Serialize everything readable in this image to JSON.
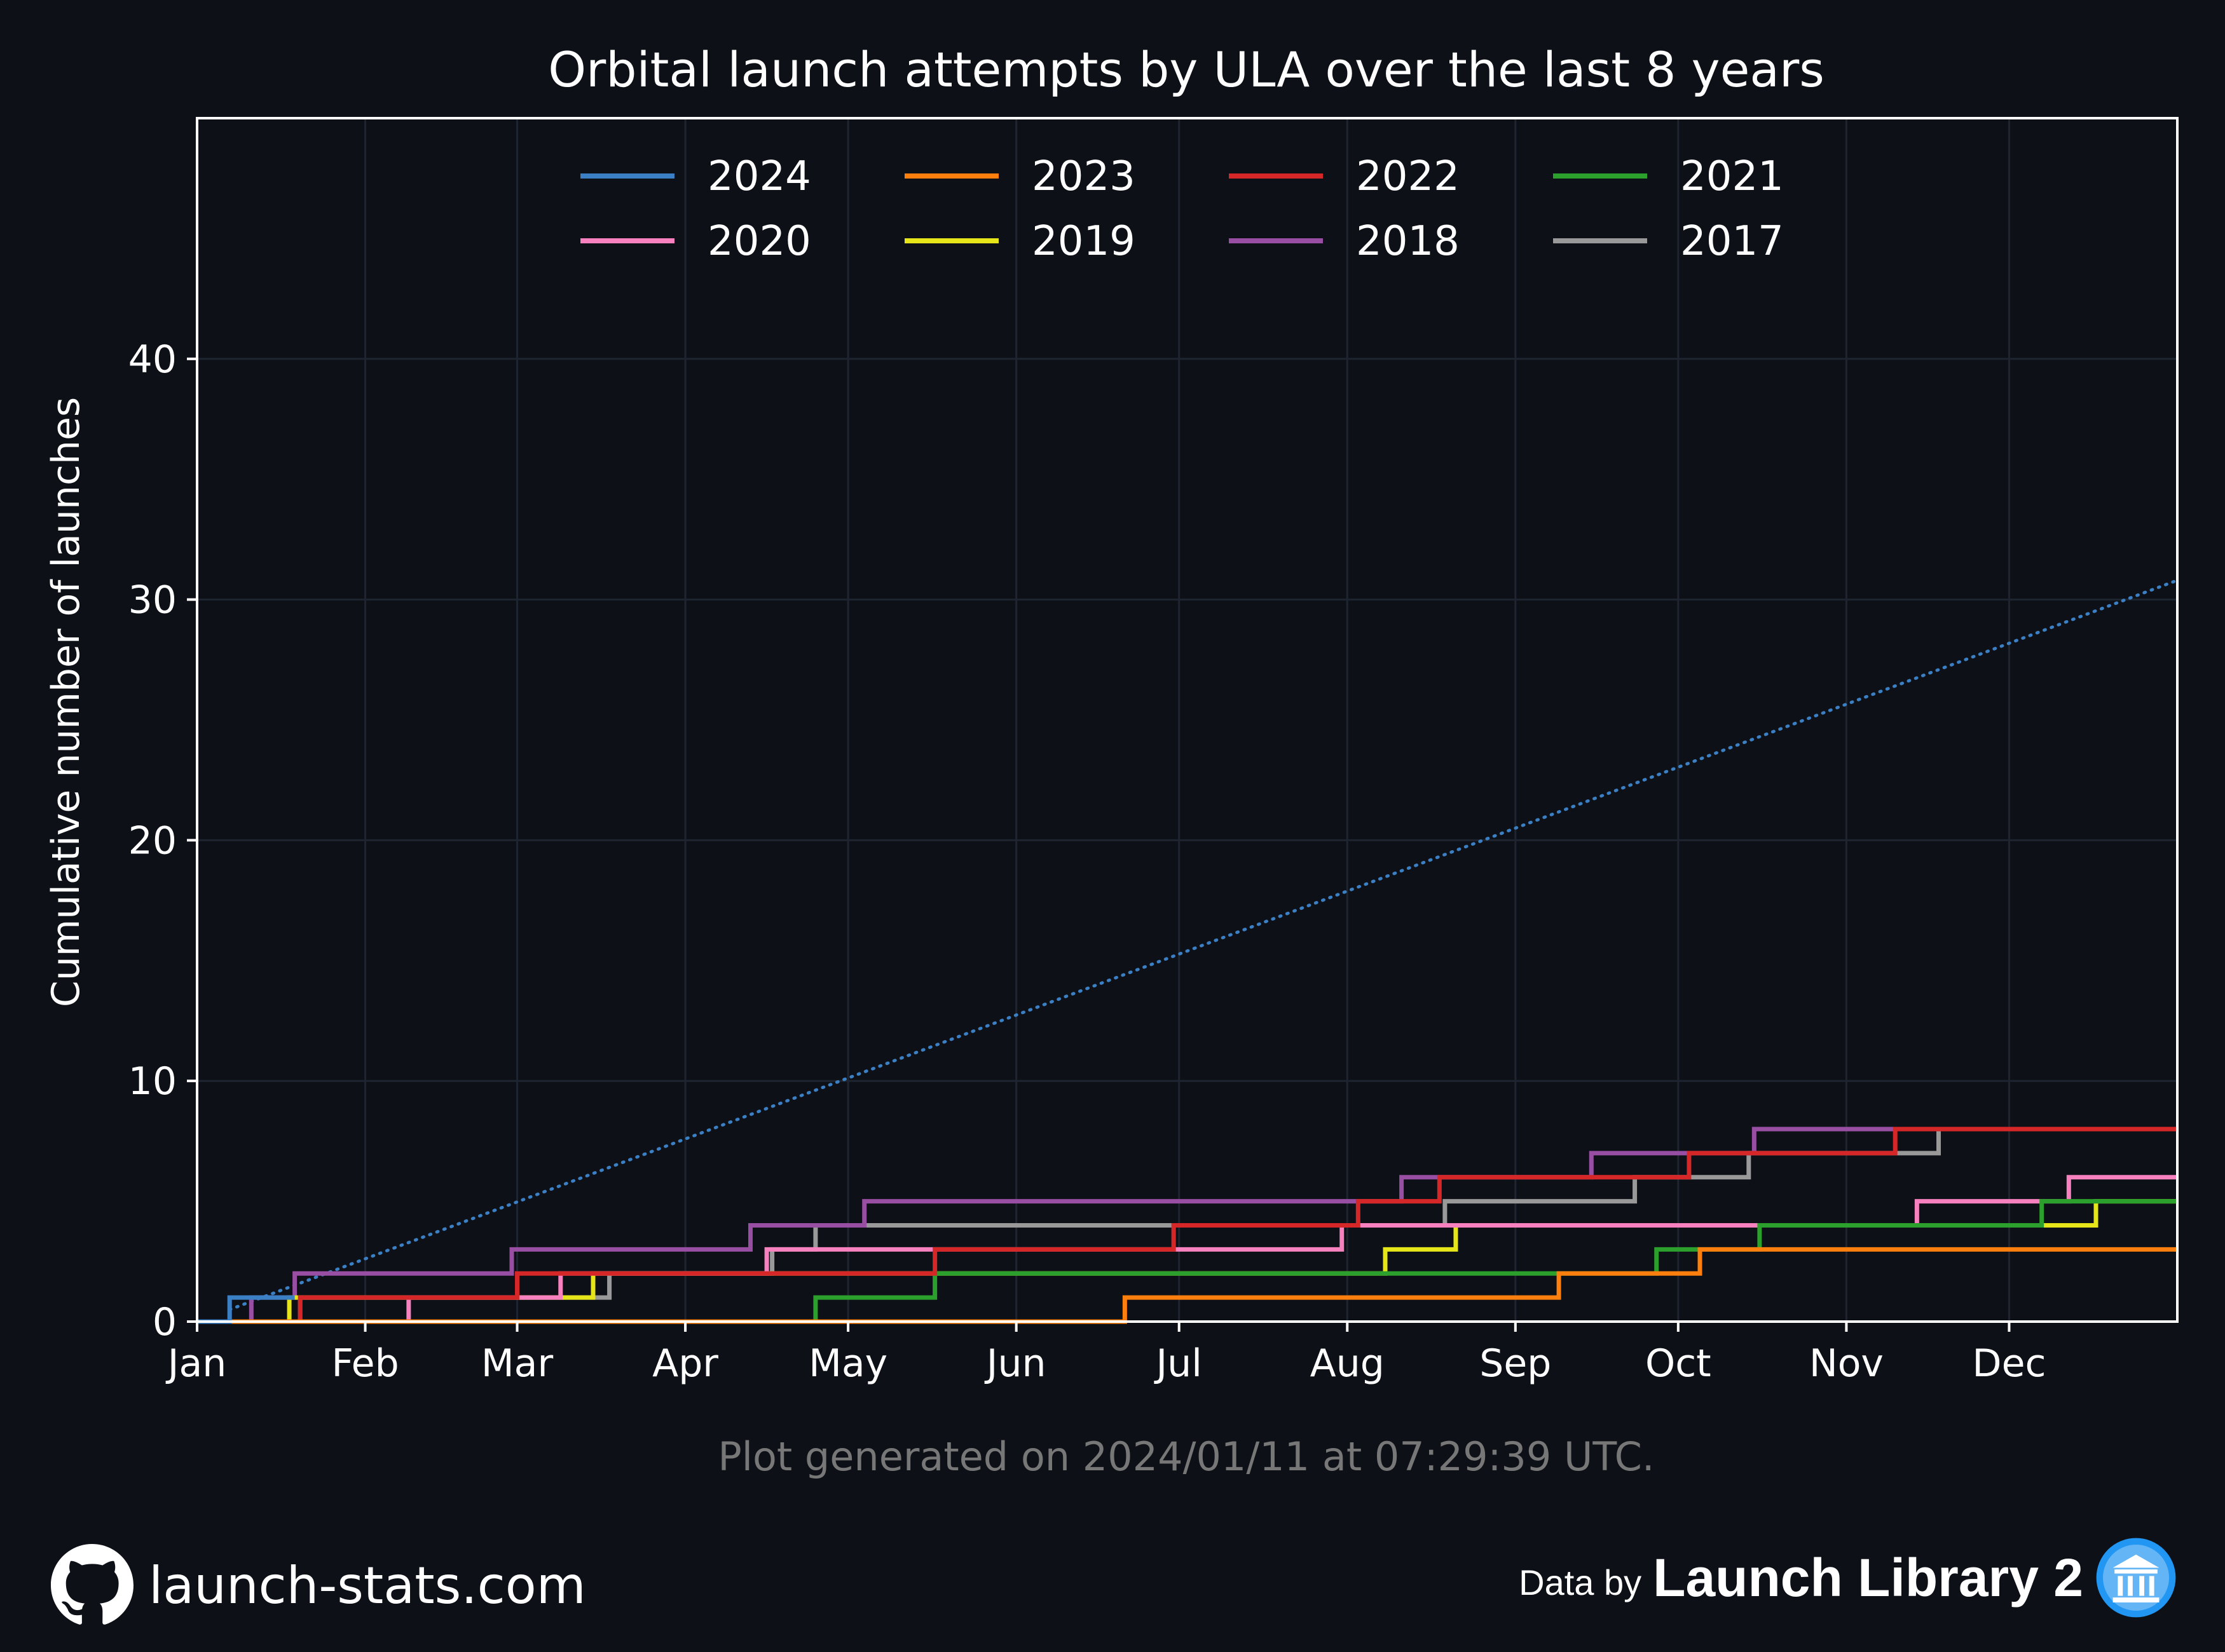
{
  "chart_data": {
    "type": "line",
    "step": true,
    "title": "Orbital launch attempts by ULA over the last 8 years",
    "ylabel": "Cumulative number of launches",
    "xlabel": "",
    "ylim": [
      0,
      50
    ],
    "xlim": [
      0,
      365
    ],
    "grid": true,
    "legend_placement": "top-center",
    "x_ticks": [
      {
        "label": "Jan",
        "day": 0
      },
      {
        "label": "Feb",
        "day": 31
      },
      {
        "label": "Mar",
        "day": 59
      },
      {
        "label": "Apr",
        "day": 90
      },
      {
        "label": "May",
        "day": 120
      },
      {
        "label": "Jun",
        "day": 151
      },
      {
        "label": "Jul",
        "day": 181
      },
      {
        "label": "Aug",
        "day": 212
      },
      {
        "label": "Sep",
        "day": 243
      },
      {
        "label": "Oct",
        "day": 273
      },
      {
        "label": "Nov",
        "day": 304
      },
      {
        "label": "Dec",
        "day": 334
      }
    ],
    "y_ticks": [
      0,
      10,
      20,
      30,
      40
    ],
    "series": [
      {
        "name": "2024",
        "color": "#3b7fc4",
        "steps": [
          [
            6,
            1
          ]
        ],
        "end": 18
      },
      {
        "name": "2023",
        "color": "#ff7f0e",
        "steps": [
          [
            171,
            1
          ],
          [
            251,
            2
          ],
          [
            277,
            3
          ]
        ],
        "end": 365
      },
      {
        "name": "2022",
        "color": "#d62728",
        "steps": [
          [
            19,
            1
          ],
          [
            59,
            2
          ],
          [
            136,
            3
          ],
          [
            180,
            4
          ],
          [
            214,
            5
          ],
          [
            229,
            6
          ],
          [
            275,
            7
          ],
          [
            313,
            8
          ]
        ],
        "end": 365
      },
      {
        "name": "2021",
        "color": "#2ca02c",
        "steps": [
          [
            114,
            1
          ],
          [
            136,
            2
          ],
          [
            269,
            3
          ],
          [
            288,
            4
          ],
          [
            340,
            5
          ]
        ],
        "end": 365
      },
      {
        "name": "2020",
        "color": "#f781bf",
        "steps": [
          [
            39,
            1
          ],
          [
            67,
            2
          ],
          [
            105,
            3
          ],
          [
            211,
            4
          ],
          [
            317,
            5
          ],
          [
            345,
            6
          ]
        ],
        "end": 365
      },
      {
        "name": "2019",
        "color": "#e5e51a",
        "steps": [
          [
            17,
            1
          ],
          [
            73,
            2
          ],
          [
            219,
            3
          ],
          [
            232,
            4
          ],
          [
            350,
            5
          ]
        ],
        "end": 365
      },
      {
        "name": "2018",
        "color": "#984ea3",
        "steps": [
          [
            10,
            1
          ],
          [
            18,
            2
          ],
          [
            58,
            3
          ],
          [
            102,
            4
          ],
          [
            123,
            5
          ],
          [
            222,
            6
          ],
          [
            257,
            7
          ],
          [
            287,
            8
          ]
        ],
        "end": 365
      },
      {
        "name": "2017",
        "color": "#999999",
        "steps": [
          [
            19,
            1
          ],
          [
            76,
            2
          ],
          [
            106,
            3
          ],
          [
            114,
            4
          ],
          [
            230,
            5
          ],
          [
            265,
            6
          ],
          [
            286,
            7
          ],
          [
            321,
            8
          ]
        ],
        "end": 365
      }
    ],
    "trend": {
      "color": "#3b7fc4",
      "from": [
        6,
        0.5
      ],
      "to": [
        365,
        30.8
      ]
    }
  },
  "caption": "Plot generated on 2024/01/11 at 07:29:39 UTC.",
  "footer": {
    "site": "launch-stats.com",
    "data_by": "Data by",
    "brand": "Launch Library 2",
    "site_icon": "github-icon",
    "brand_icon": "library-icon"
  }
}
